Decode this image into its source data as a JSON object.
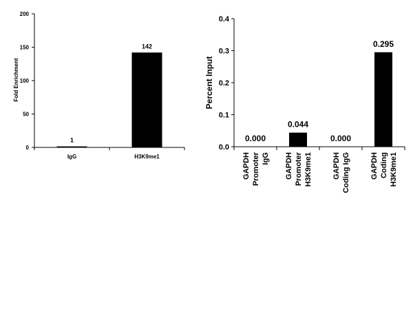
{
  "chart_data": [
    {
      "type": "bar",
      "ylabel": "Fold Enrichment",
      "ylim": [
        0,
        200
      ],
      "yticks": [
        0,
        50,
        100,
        150,
        200
      ],
      "categories": [
        "IgG",
        "H3K9me1"
      ],
      "values": [
        1,
        142
      ],
      "data_labels": [
        "1",
        "142"
      ],
      "grid": false,
      "bar_color": "#000000"
    },
    {
      "type": "bar",
      "ylabel": "Percent Input",
      "ylim": [
        0,
        0.4
      ],
      "yticks": [
        "0.0",
        "0.1",
        "0.2",
        "0.3",
        "0.4"
      ],
      "categories": [
        [
          "GAPDH",
          "Promoter",
          "IgG"
        ],
        [
          "GAPDH",
          "Promoter",
          "H3K9me1"
        ],
        [
          "GAPDH",
          "Coding IgG"
        ],
        [
          "GAPDH",
          "Coding",
          "H3K9me1"
        ]
      ],
      "values": [
        0.0,
        0.044,
        0.0,
        0.295
      ],
      "data_labels": [
        "0.000",
        "0.044",
        "0.000",
        "0.295"
      ],
      "grid": false,
      "bar_color": "#000000"
    }
  ]
}
